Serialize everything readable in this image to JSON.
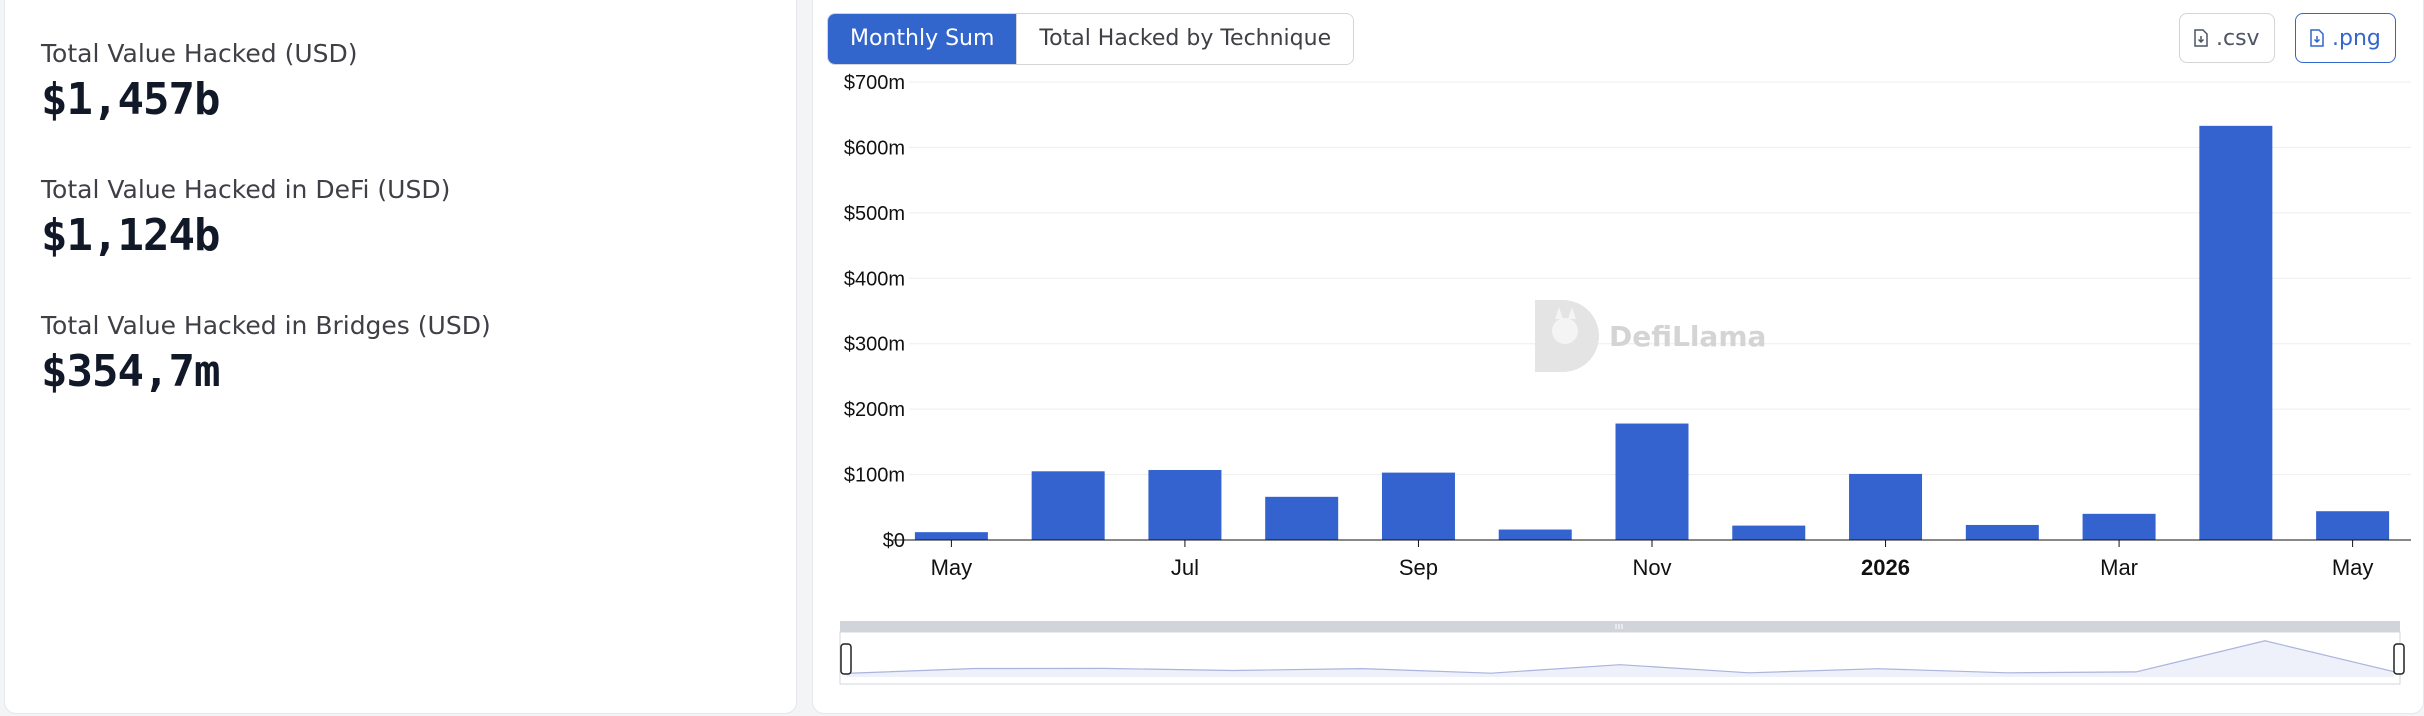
{
  "stats": [
    {
      "label": "Total Value Hacked (USD)",
      "value": "$1,457b"
    },
    {
      "label": "Total Value Hacked in DeFi (USD)",
      "value": "$1,124b"
    },
    {
      "label": "Total Value Hacked in Bridges (USD)",
      "value": "$354,7m"
    }
  ],
  "tabs": [
    {
      "label": "Monthly Sum",
      "active": true
    },
    {
      "label": "Total Hacked by Technique",
      "active": false
    }
  ],
  "downloads": {
    "csv_label": ".csv",
    "png_label": ".png",
    "icon": "file-download-icon"
  },
  "watermark": {
    "text": "DefiLlama",
    "icon": "llama-logo-icon"
  },
  "colors": {
    "accent": "#3366cc",
    "bar": "#3463cf"
  },
  "chart_data": {
    "type": "bar",
    "ylim": [
      0,
      700
    ],
    "y_ticks": [
      "$0",
      "$100m",
      "$200m",
      "$300m",
      "$400m",
      "$500m",
      "$600m",
      "$700m"
    ],
    "y_tick_values": [
      0,
      100,
      200,
      300,
      400,
      500,
      600,
      700
    ],
    "categories": [
      "2025-05",
      "2025-06",
      "2025-07",
      "2025-08",
      "2025-09",
      "2025-10",
      "2025-11",
      "2025-12",
      "2026-01",
      "2026-02",
      "2026-03",
      "2026-04",
      "2026-05"
    ],
    "values": [
      12,
      105,
      107,
      66,
      103,
      16,
      178,
      22,
      101,
      23,
      40,
      633,
      44
    ],
    "x_tick_labels": [
      {
        "label": "May",
        "category": "2025-05",
        "bold": false
      },
      {
        "label": "Jul",
        "category": "2025-07",
        "bold": false
      },
      {
        "label": "Sep",
        "category": "2025-09",
        "bold": false
      },
      {
        "label": "Nov",
        "category": "2025-11",
        "bold": false
      },
      {
        "label": "2026",
        "category": "2026-01",
        "bold": true
      },
      {
        "label": "Mar",
        "category": "2026-03",
        "bold": false
      },
      {
        "label": "May",
        "category": "2026-05",
        "bold": false
      }
    ],
    "grid": true,
    "legend": "none"
  }
}
